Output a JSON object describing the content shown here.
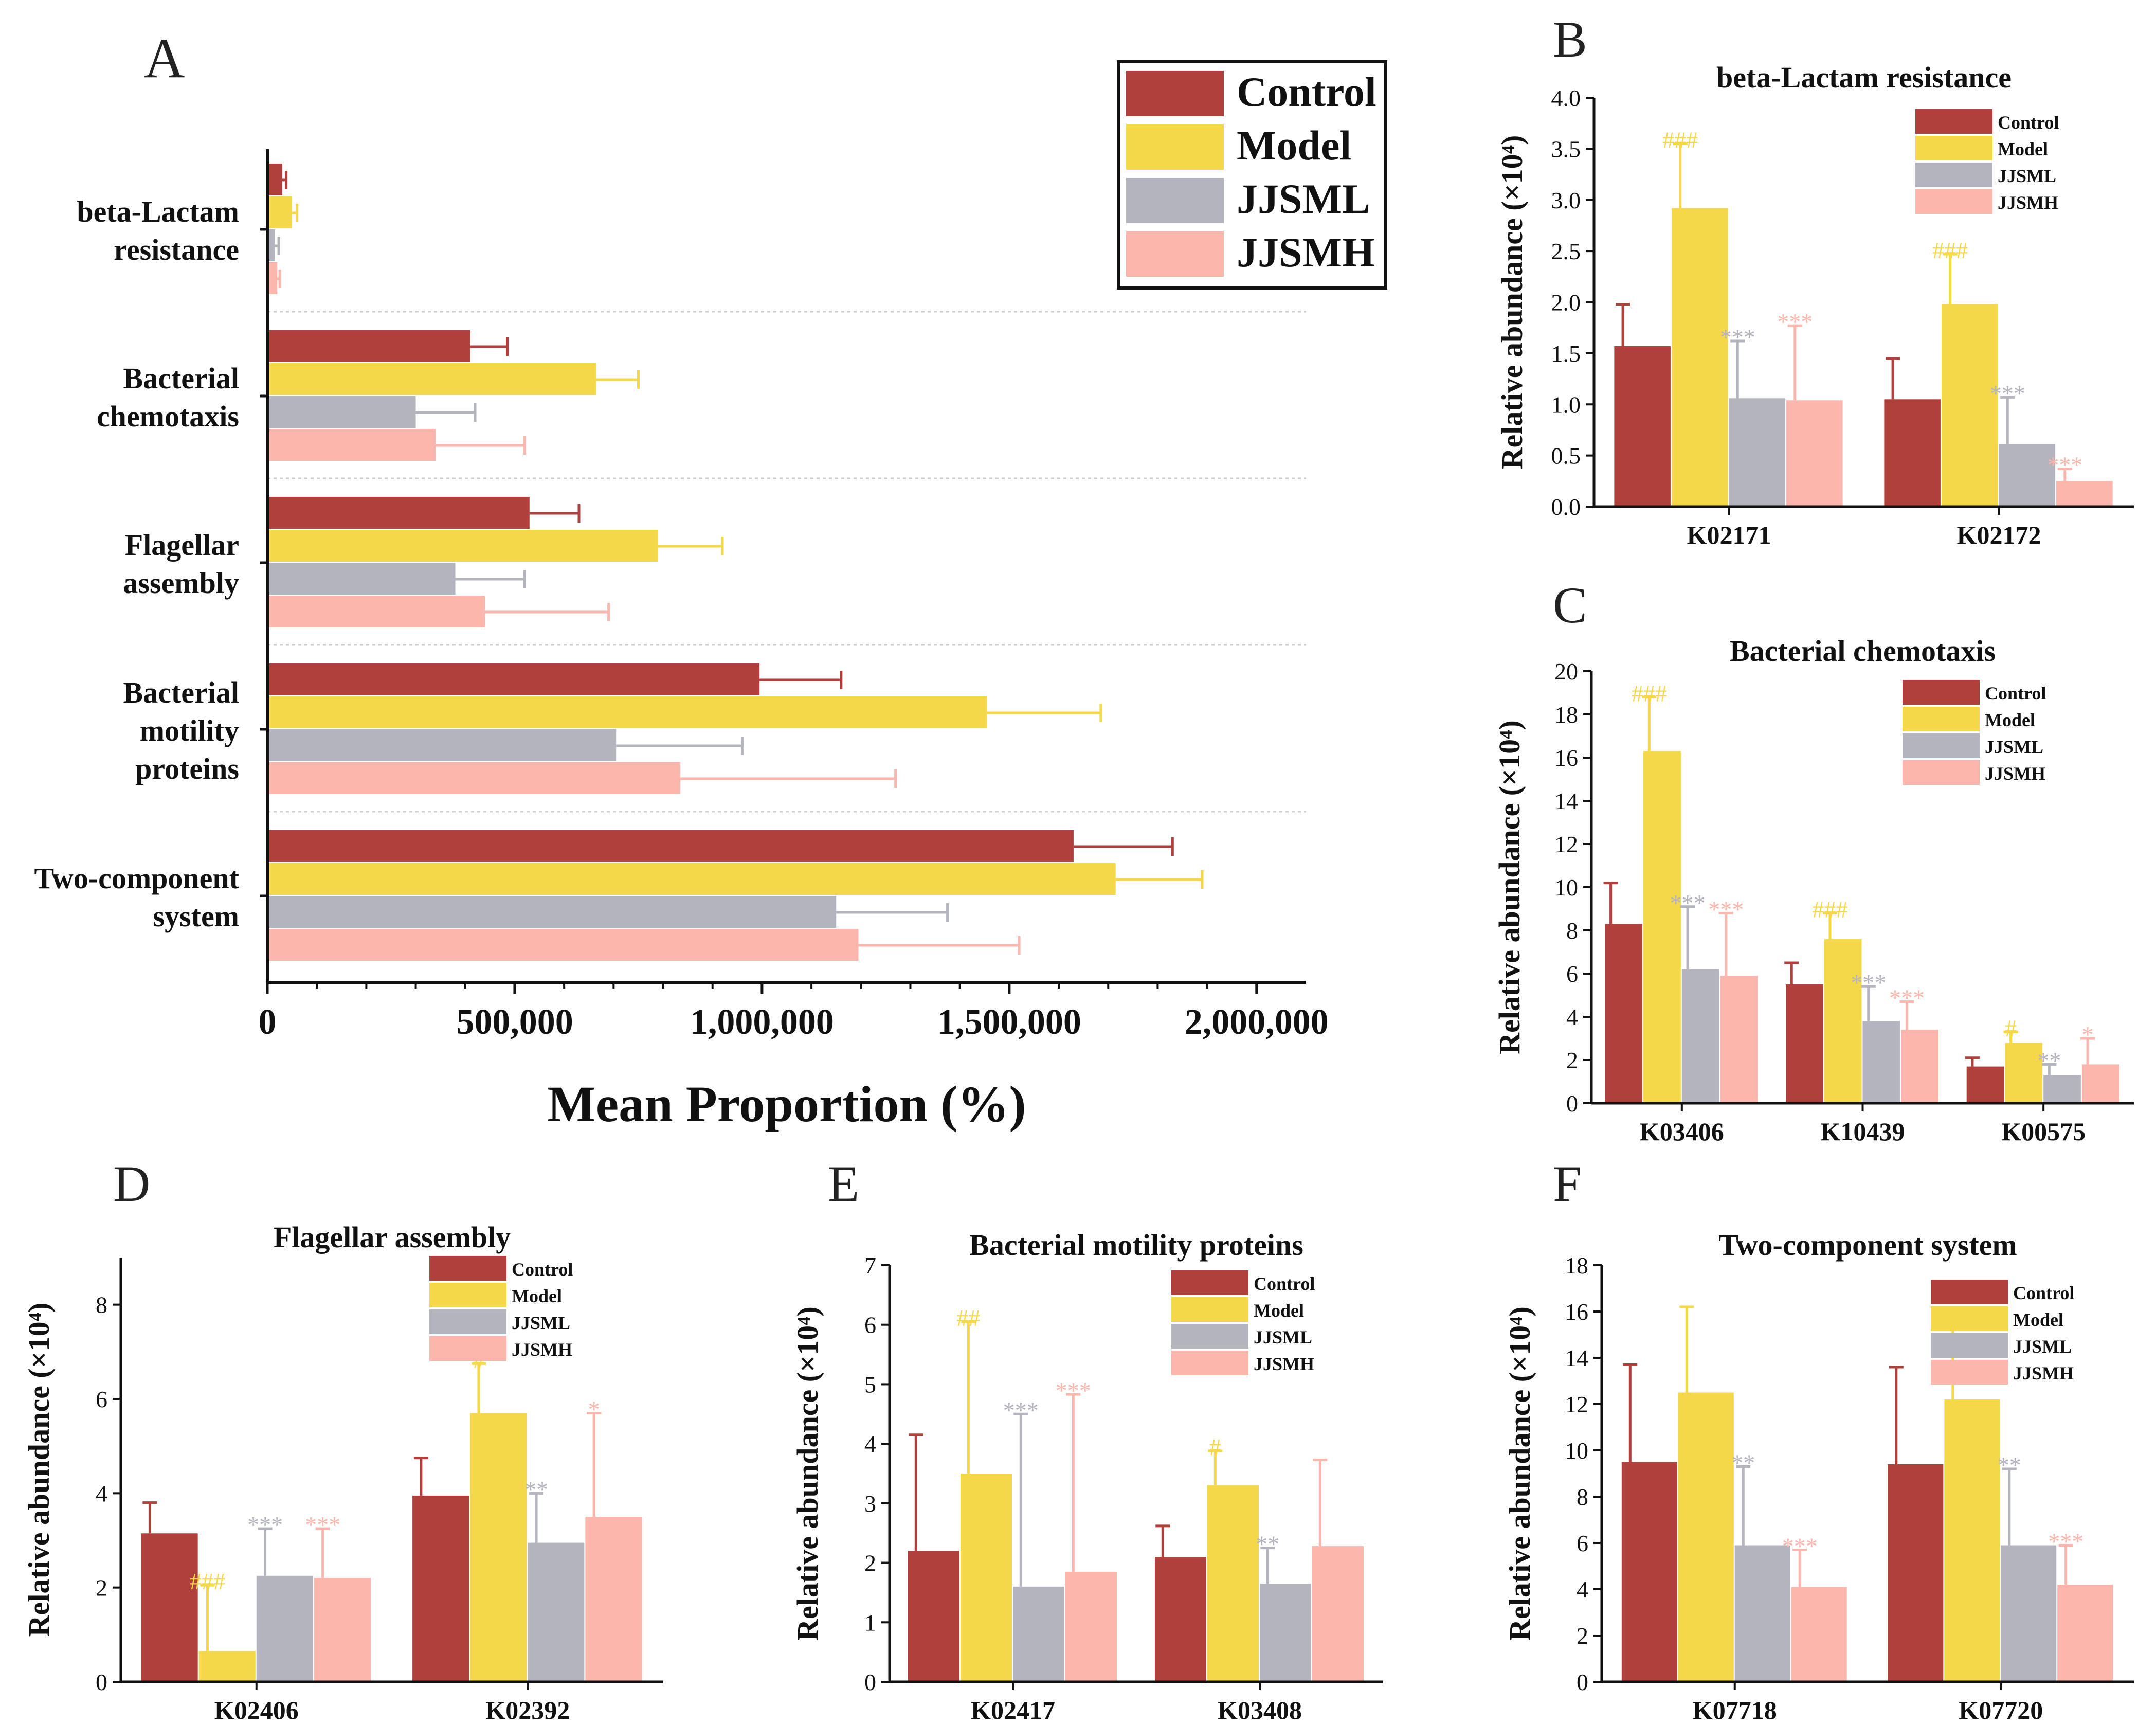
{
  "colors": {
    "Control": "#b0403c",
    "Model": "#f5d84a",
    "JJSML": "#b3b4bd",
    "JJSMH": "#fcb6ac",
    "axis": "#111111",
    "divider": "#cfcfcf"
  },
  "chart_data": [
    {
      "panel": "A",
      "type": "bar",
      "orientation": "horizontal",
      "title": "",
      "xlabel": "Mean Proportion (%)",
      "ylabel": "",
      "categories": [
        [
          "beta-Lactam",
          "resistance"
        ],
        [
          "Bacterial",
          "chemotaxis"
        ],
        [
          "Flagellar",
          "assembly"
        ],
        [
          "Bacterial",
          "motility",
          "proteins"
        ],
        [
          "Two-component",
          "system"
        ]
      ],
      "xlim": [
        0,
        2100000
      ],
      "xticks": [
        0,
        500000,
        1000000,
        1500000,
        2000000
      ],
      "xtick_labels": [
        "0",
        "500,000",
        "1,000,000",
        "1,500,000",
        "2,000,000"
      ],
      "series": [
        {
          "name": "Control",
          "values": [
            30000,
            410000,
            530000,
            995000,
            1630000
          ],
          "errors": [
            8000,
            75000,
            100000,
            165000,
            200000
          ]
        },
        {
          "name": "Model",
          "values": [
            50000,
            665000,
            790000,
            1455000,
            1715000
          ],
          "errors": [
            10000,
            85000,
            130000,
            230000,
            175000
          ]
        },
        {
          "name": "JJSML",
          "values": [
            15000,
            300000,
            380000,
            705000,
            1150000
          ],
          "errors": [
            8000,
            120000,
            140000,
            255000,
            225000
          ]
        },
        {
          "name": "JJSMH",
          "values": [
            20000,
            340000,
            440000,
            835000,
            1195000
          ],
          "errors": [
            5000,
            180000,
            250000,
            435000,
            325000
          ]
        }
      ],
      "legend": {
        "position": "top-right",
        "entries": [
          "Control",
          "Model",
          "JJSML",
          "JJSMH"
        ]
      }
    },
    {
      "panel": "B",
      "type": "bar",
      "title": "beta-Lactam resistance",
      "ylabel": "Relative abundance (×10⁴)",
      "categories": [
        "K02171",
        "K02172"
      ],
      "ylim": [
        0,
        4
      ],
      "yticks": [
        0,
        0.5,
        1,
        1.5,
        2,
        2.5,
        3,
        3.5,
        4
      ],
      "ytick_labels": [
        "0.0",
        "0.5",
        "1.0",
        "1.5",
        "2.0",
        "2.5",
        "3.0",
        "3.5",
        "4.0"
      ],
      "series": [
        {
          "name": "Control",
          "values": [
            1.57,
            1.05
          ],
          "errors": [
            0.41,
            0.4
          ],
          "marks": [
            "",
            ""
          ]
        },
        {
          "name": "Model",
          "values": [
            2.92,
            1.98
          ],
          "errors": [
            0.63,
            0.49
          ],
          "marks": [
            "###",
            "###"
          ]
        },
        {
          "name": "JJSML",
          "values": [
            1.06,
            0.61
          ],
          "errors": [
            0.56,
            0.46
          ],
          "marks": [
            "***",
            "***"
          ]
        },
        {
          "name": "JJSMH",
          "values": [
            1.04,
            0.25
          ],
          "errors": [
            0.73,
            0.12
          ],
          "marks": [
            "***",
            "***"
          ]
        }
      ],
      "legend": {
        "position": "top-right",
        "entries": [
          "Control",
          "Model",
          "JJSML",
          "JJSMH"
        ]
      }
    },
    {
      "panel": "C",
      "type": "bar",
      "title": "Bacterial chemotaxis",
      "ylabel": "Relative abundance (×10⁴)",
      "categories": [
        "K03406",
        "K10439",
        "K00575"
      ],
      "ylim": [
        0,
        20
      ],
      "yticks": [
        0,
        2,
        4,
        6,
        8,
        10,
        12,
        14,
        16,
        18,
        20
      ],
      "ytick_labels": [
        "0",
        "2",
        "4",
        "6",
        "8",
        "10",
        "12",
        "14",
        "16",
        "18",
        "20"
      ],
      "series": [
        {
          "name": "Control",
          "values": [
            8.3,
            5.5,
            1.7
          ],
          "errors": [
            1.9,
            1.0,
            0.4
          ],
          "marks": [
            "",
            "",
            ""
          ]
        },
        {
          "name": "Model",
          "values": [
            16.3,
            7.6,
            2.8
          ],
          "errors": [
            2.5,
            1.2,
            0.5
          ],
          "marks": [
            "###",
            "###",
            "#"
          ]
        },
        {
          "name": "JJSML",
          "values": [
            6.2,
            3.8,
            1.3
          ],
          "errors": [
            2.9,
            1.6,
            0.5
          ],
          "marks": [
            "***",
            "***",
            "**"
          ]
        },
        {
          "name": "JJSMH",
          "values": [
            5.9,
            3.4,
            1.8
          ],
          "errors": [
            2.9,
            1.3,
            1.2
          ],
          "marks": [
            "***",
            "***",
            "*"
          ]
        }
      ],
      "legend": {
        "position": "top-right",
        "entries": [
          "Control",
          "Model",
          "JJSML",
          "JJSMH"
        ]
      }
    },
    {
      "panel": "D",
      "type": "bar",
      "title": "Flagellar assembly",
      "ylabel": "Relative abundance (×10⁴)",
      "categories": [
        "K02406",
        "K02392"
      ],
      "ylim": [
        0,
        9
      ],
      "yticks": [
        0,
        2,
        4,
        6,
        8
      ],
      "ytick_labels": [
        "0",
        "2",
        "4",
        "6",
        "8"
      ],
      "series": [
        {
          "name": "Control",
          "values": [
            3.15,
            3.95
          ],
          "errors": [
            0.65,
            0.8
          ],
          "marks": [
            "",
            ""
          ]
        },
        {
          "name": "Model",
          "values": [
            0.65,
            5.7
          ],
          "errors": [
            1.4,
            1.05
          ],
          "marks": [
            "###",
            "#"
          ]
        },
        {
          "name": "JJSML",
          "values": [
            2.25,
            2.95
          ],
          "errors": [
            1.0,
            1.05
          ],
          "marks": [
            "***",
            "**"
          ]
        },
        {
          "name": "JJSMH",
          "values": [
            2.2,
            3.5
          ],
          "errors": [
            1.05,
            2.2
          ],
          "marks": [
            "***",
            "*"
          ]
        }
      ],
      "legend": {
        "position": "top-right",
        "entries": [
          "Control",
          "Model",
          "JJSML",
          "JJSMH"
        ]
      }
    },
    {
      "panel": "E",
      "type": "bar",
      "title": "Bacterial motility proteins",
      "ylabel": "Relative abundance (×10⁴)",
      "categories": [
        "K02417",
        "K03408"
      ],
      "ylim": [
        0,
        7
      ],
      "yticks": [
        0,
        1,
        2,
        3,
        4,
        5,
        6,
        7
      ],
      "ytick_labels": [
        "0",
        "1",
        "2",
        "3",
        "4",
        "5",
        "6",
        "7"
      ],
      "series": [
        {
          "name": "Control",
          "values": [
            2.2,
            2.1
          ],
          "errors": [
            1.95,
            0.52
          ],
          "marks": [
            "",
            ""
          ]
        },
        {
          "name": "Model",
          "values": [
            3.5,
            3.3
          ],
          "errors": [
            2.55,
            0.58
          ],
          "marks": [
            "##",
            "#"
          ]
        },
        {
          "name": "JJSML",
          "values": [
            1.6,
            1.65
          ],
          "errors": [
            2.9,
            0.6
          ],
          "marks": [
            "***",
            "**"
          ]
        },
        {
          "name": "JJSMH",
          "values": [
            1.85,
            2.28
          ],
          "errors": [
            2.98,
            1.45
          ],
          "marks": [
            "***",
            ""
          ]
        }
      ],
      "legend": {
        "position": "top-right",
        "entries": [
          "Control",
          "Model",
          "JJSML",
          "JJSMH"
        ]
      }
    },
    {
      "panel": "F",
      "type": "bar",
      "title": "Two-component system",
      "ylabel": "Relative abundance (×10⁴)",
      "categories": [
        "K07718",
        "K07720"
      ],
      "ylim": [
        0,
        18
      ],
      "yticks": [
        0,
        2,
        4,
        6,
        8,
        10,
        12,
        14,
        16,
        18
      ],
      "ytick_labels": [
        "0",
        "2",
        "4",
        "6",
        "8",
        "10",
        "12",
        "14",
        "16",
        "18"
      ],
      "series": [
        {
          "name": "Control",
          "values": [
            9.5,
            9.4
          ],
          "errors": [
            4.2,
            4.2
          ],
          "marks": [
            "",
            ""
          ]
        },
        {
          "name": "Model",
          "values": [
            12.5,
            12.2
          ],
          "errors": [
            3.7,
            3.6
          ],
          "marks": [
            "",
            ""
          ]
        },
        {
          "name": "JJSML",
          "values": [
            5.9,
            5.9
          ],
          "errors": [
            3.4,
            3.3
          ],
          "marks": [
            "**",
            "**"
          ]
        },
        {
          "name": "JJSMH",
          "values": [
            4.1,
            4.2
          ],
          "errors": [
            1.6,
            1.7
          ],
          "marks": [
            "***",
            "***"
          ]
        }
      ],
      "legend": {
        "position": "top-right",
        "entries": [
          "Control",
          "Model",
          "JJSML",
          "JJSMH"
        ]
      }
    }
  ]
}
